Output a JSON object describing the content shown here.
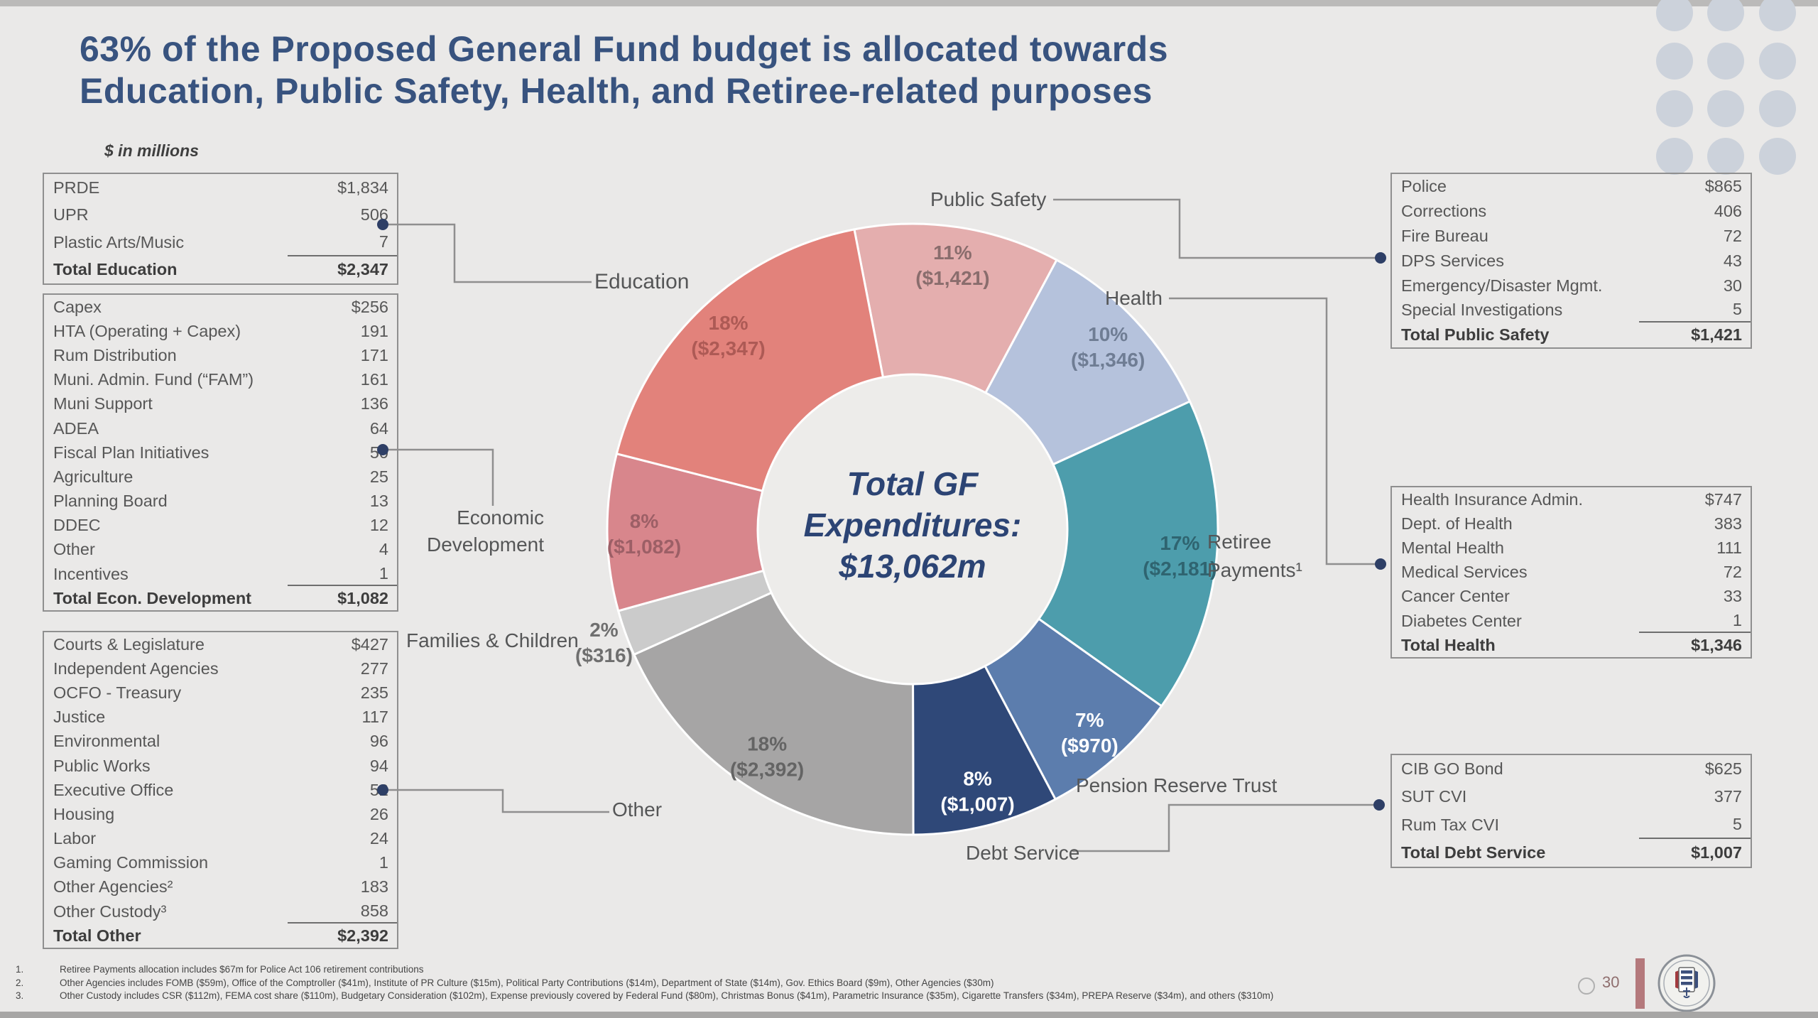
{
  "title": {
    "line1": "63% of the Proposed General Fund budget is allocated towards",
    "line2": "Education, Public Safety, Health, and Retiree-related purposes"
  },
  "units_note": "$ in millions",
  "tables": {
    "education": {
      "rows": [
        [
          "PRDE",
          "$1,834"
        ],
        [
          "UPR",
          "506"
        ],
        [
          "Plastic Arts/Music",
          "7"
        ]
      ],
      "total": [
        "Total Education",
        "$2,347"
      ]
    },
    "economic_development": {
      "rows": [
        [
          "Capex",
          "$256"
        ],
        [
          "HTA (Operating + Capex)",
          "191"
        ],
        [
          "Rum Distribution",
          "171"
        ],
        [
          "Muni. Admin. Fund (“FAM”)",
          "161"
        ],
        [
          "Muni Support",
          "136"
        ],
        [
          "ADEA",
          "64"
        ],
        [
          "Fiscal Plan Initiatives",
          "50"
        ],
        [
          "Agriculture",
          "25"
        ],
        [
          "Planning Board",
          "13"
        ],
        [
          "DDEC",
          "12"
        ],
        [
          "Other",
          "4"
        ],
        [
          "Incentives",
          "1"
        ]
      ],
      "total": [
        "Total Econ. Development",
        "$1,082"
      ]
    },
    "other": {
      "rows": [
        [
          "Courts & Legislature",
          "$427"
        ],
        [
          "Independent Agencies",
          "277"
        ],
        [
          "OCFO - Treasury",
          "235"
        ],
        [
          "Justice",
          "117"
        ],
        [
          "Environmental",
          "96"
        ],
        [
          "Public Works",
          "94"
        ],
        [
          "Executive Office",
          "52"
        ],
        [
          "Housing",
          "26"
        ],
        [
          "Labor",
          "24"
        ],
        [
          "Gaming Commission",
          "1"
        ],
        [
          "Other Agencies²",
          "183"
        ],
        [
          "Other Custody³",
          "858"
        ]
      ],
      "total": [
        "Total Other",
        "$2,392"
      ]
    },
    "public_safety": {
      "rows": [
        [
          "Police",
          "$865"
        ],
        [
          "Corrections",
          "406"
        ],
        [
          "Fire Bureau",
          "72"
        ],
        [
          "DPS Services",
          "43"
        ],
        [
          "Emergency/Disaster Mgmt.",
          "30"
        ],
        [
          "Special Investigations",
          "5"
        ]
      ],
      "total": [
        "Total Public Safety",
        "$1,421"
      ]
    },
    "health": {
      "rows": [
        [
          "Health Insurance Admin.",
          "$747"
        ],
        [
          "Dept. of Health",
          "383"
        ],
        [
          "Mental Health",
          "111"
        ],
        [
          "Medical Services",
          "72"
        ],
        [
          "Cancer Center",
          "33"
        ],
        [
          "Diabetes Center",
          "1"
        ]
      ],
      "total": [
        "Total Health",
        "$1,346"
      ]
    },
    "debt_service": {
      "rows": [
        [
          "CIB GO Bond",
          "$625"
        ],
        [
          "SUT CVI",
          "377"
        ],
        [
          "Rum Tax CVI",
          "5"
        ]
      ],
      "total": [
        "Total Debt Service",
        "$1,007"
      ]
    }
  },
  "chart_data": {
    "type": "pie",
    "style": "donut",
    "title": "Total GF Expenditures: $13,062m",
    "center_label": {
      "line1": "Total GF",
      "line2": "Expenditures:",
      "line3": "$13,062m"
    },
    "total_value_musd": 13062,
    "start_angle_deg": -11,
    "slices": [
      {
        "label": "Public Safety",
        "pct": "11%",
        "amount": "($1,421)",
        "value": 1421,
        "color": "#e4aeae",
        "text_color": "#8a6d6d"
      },
      {
        "label": "Health",
        "pct": "10%",
        "amount": "($1,346)",
        "value": 1346,
        "color": "#b5c2dc",
        "text_color": "#6f7d94"
      },
      {
        "label": "Retiree Payments¹",
        "pct": "17%",
        "amount": "($2,181)",
        "value": 2181,
        "color": "#4d9dac",
        "text_color": "#2f6470"
      },
      {
        "label": "Pension Reserve Trust",
        "pct": "7%",
        "amount": "($970)",
        "value": 970,
        "color": "#5c7dad",
        "text_color": "#ffffff"
      },
      {
        "label": "Debt Service",
        "pct": "8%",
        "amount": "($1,007)",
        "value": 1007,
        "color": "#2f4878",
        "text_color": "#ffffff"
      },
      {
        "label": "Other",
        "pct": "18%",
        "amount": "($2,392)",
        "value": 2392,
        "color": "#a6a5a5",
        "text_color": "#646464"
      },
      {
        "label": "Families & Children",
        "pct": "2%",
        "amount": "($316)",
        "value": 316,
        "color": "#cbcbcb",
        "text_color": "#6f6f6f",
        "label_r": 462
      },
      {
        "label": "Economic Development",
        "pct": "8%",
        "amount": "($1,082)",
        "value": 1082,
        "color": "#d8868c",
        "text_color": "#9c5f66"
      },
      {
        "label": "Education",
        "pct": "18%",
        "amount": "($2,347)",
        "value": 2347,
        "color": "#e2827b",
        "text_color": "#ad5a55"
      }
    ]
  },
  "footnotes": [
    {
      "num": "1.",
      "text": "Retiree Payments allocation includes $67m for Police Act 106  retirement contributions"
    },
    {
      "num": "2.",
      "text": "Other Agencies includes FOMB ($59m), Office of the Comptroller ($41m), Institute of PR Culture ($15m), Political Party Contributions ($14m), Department of State ($14m), Gov. Ethics Board ($9m), Other Agencies ($30m)"
    },
    {
      "num": "3.",
      "text": "Other Custody includes CSR ($112m), FEMA cost share ($110m), Budgetary Consideration ($102m), Expense previously covered by Federal Fund ($80m), Christmas Bonus ($41m), Parametric Insurance ($35m), Cigarette Transfers ($34m), PREPA Reserve ($34m), and others ($310m)"
    }
  ],
  "page": {
    "number": "30"
  }
}
